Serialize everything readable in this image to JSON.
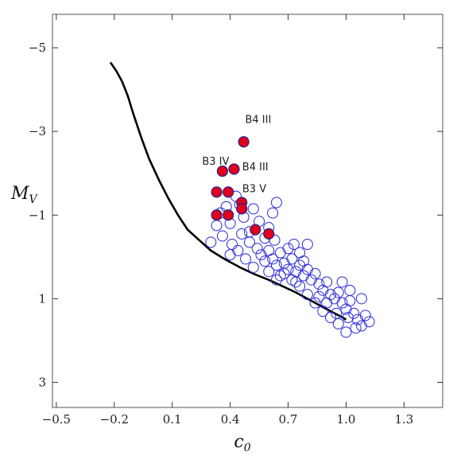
{
  "chart_data": {
    "type": "scatter",
    "title": "",
    "xlabel": "c",
    "xlabel_sub": "0",
    "ylabel": "M",
    "ylabel_sub": "V",
    "xlim": [
      -0.52,
      1.5
    ],
    "ylim": [
      3.6,
      -5.8
    ],
    "y_inverted": true,
    "grid": false,
    "legend": "none",
    "xticks": [
      -0.5,
      -0.2,
      0.1,
      0.4,
      0.7,
      1.0,
      1.3
    ],
    "xtick_labels": [
      "−0.5",
      "−0.2",
      "0.1",
      "0.4",
      "0.7",
      "1.0",
      "1.3"
    ],
    "yticks": [
      -5,
      -3,
      -1,
      1,
      3
    ],
    "ytick_labels": [
      "−5",
      "−3",
      "−1",
      "1",
      "3"
    ],
    "colors": {
      "open_markers": "#2a2ad8",
      "filled_markers_fill": "#e0001b",
      "filled_markers_edge": "#23238c",
      "curve": "#000000"
    },
    "series": [
      {
        "kind": "curve",
        "points": [
          [
            -0.22,
            -4.65
          ],
          [
            -0.19,
            -4.45
          ],
          [
            -0.16,
            -4.2
          ],
          [
            -0.13,
            -3.85
          ],
          [
            -0.1,
            -3.4
          ],
          [
            -0.06,
            -2.85
          ],
          [
            -0.02,
            -2.35
          ],
          [
            0.03,
            -1.85
          ],
          [
            0.08,
            -1.4
          ],
          [
            0.13,
            -1.0
          ],
          [
            0.18,
            -0.65
          ],
          [
            0.24,
            -0.4
          ],
          [
            0.3,
            -0.15
          ],
          [
            0.37,
            0.05
          ],
          [
            0.45,
            0.25
          ],
          [
            0.53,
            0.42
          ],
          [
            0.6,
            0.55
          ],
          [
            0.67,
            0.7
          ],
          [
            0.74,
            0.85
          ],
          [
            0.8,
            1.0
          ],
          [
            0.86,
            1.15
          ],
          [
            0.92,
            1.3
          ],
          [
            0.97,
            1.42
          ],
          [
            1.0,
            1.5
          ]
        ]
      },
      {
        "kind": "open",
        "points": [
          [
            0.3,
            -0.35
          ],
          [
            0.33,
            -0.75
          ],
          [
            0.35,
            -1.05
          ],
          [
            0.38,
            -1.2
          ],
          [
            0.4,
            -0.8
          ],
          [
            0.43,
            -1.45
          ],
          [
            0.45,
            -1.25
          ],
          [
            0.47,
            -0.95
          ],
          [
            0.5,
            -0.6
          ],
          [
            0.52,
            -1.15
          ],
          [
            0.55,
            -0.85
          ],
          [
            0.58,
            -0.45
          ],
          [
            0.6,
            -0.7
          ],
          [
            0.62,
            -1.05
          ],
          [
            0.64,
            -1.3
          ],
          [
            0.36,
            -0.5
          ],
          [
            0.41,
            -0.3
          ],
          [
            0.46,
            -0.55
          ],
          [
            0.5,
            -0.35
          ],
          [
            0.54,
            -0.2
          ],
          [
            0.56,
            -0.05
          ],
          [
            0.58,
            0.1
          ],
          [
            0.6,
            -0.15
          ],
          [
            0.62,
            0.05
          ],
          [
            0.64,
            0.2
          ],
          [
            0.66,
            -0.1
          ],
          [
            0.68,
            0.15
          ],
          [
            0.7,
            0.3
          ],
          [
            0.72,
            0.05
          ],
          [
            0.74,
            0.35
          ],
          [
            0.76,
            0.2
          ],
          [
            0.78,
            0.45
          ],
          [
            0.8,
            0.3
          ],
          [
            0.82,
            0.55
          ],
          [
            0.84,
            0.4
          ],
          [
            0.86,
            0.65
          ],
          [
            0.88,
            0.8
          ],
          [
            0.9,
            0.6
          ],
          [
            0.92,
            0.9
          ],
          [
            0.94,
            1.0
          ],
          [
            0.96,
            0.85
          ],
          [
            0.98,
            1.1
          ],
          [
            1.0,
            1.25
          ],
          [
            1.02,
            1.05
          ],
          [
            1.04,
            1.35
          ],
          [
            1.06,
            1.5
          ],
          [
            1.08,
            1.65
          ],
          [
            1.1,
            1.4
          ],
          [
            1.12,
            1.55
          ],
          [
            1.05,
            1.7
          ],
          [
            1.0,
            1.8
          ],
          [
            0.96,
            1.6
          ],
          [
            0.92,
            1.45
          ],
          [
            0.88,
            1.3
          ],
          [
            0.84,
            1.1
          ],
          [
            0.8,
            0.9
          ],
          [
            0.76,
            0.7
          ],
          [
            0.72,
            0.55
          ],
          [
            0.68,
            0.4
          ],
          [
            0.64,
            0.55
          ],
          [
            0.7,
            -0.2
          ],
          [
            0.73,
            -0.3
          ],
          [
            0.76,
            -0.1
          ],
          [
            0.6,
            0.35
          ],
          [
            0.52,
            0.25
          ],
          [
            0.48,
            0.05
          ],
          [
            0.44,
            -0.15
          ],
          [
            0.4,
            -0.05
          ],
          [
            0.98,
            0.6
          ],
          [
            1.02,
            0.8
          ],
          [
            1.08,
            1.0
          ],
          [
            0.9,
            1.1
          ],
          [
            0.95,
            1.35
          ],
          [
            1.01,
            1.45
          ],
          [
            0.86,
            0.95
          ],
          [
            0.78,
            0.1
          ],
          [
            0.8,
            -0.3
          ],
          [
            0.66,
            0.45
          ],
          [
            0.74,
            0.6
          ],
          [
            0.63,
            -0.4
          ]
        ]
      },
      {
        "kind": "filled",
        "points": [
          [
            0.47,
            -2.75
          ],
          [
            0.36,
            -2.05
          ],
          [
            0.42,
            -2.1
          ],
          [
            0.33,
            -1.55
          ],
          [
            0.39,
            -1.55
          ],
          [
            0.46,
            -1.3
          ],
          [
            0.46,
            -1.15
          ],
          [
            0.33,
            -1.0
          ],
          [
            0.39,
            -1.0
          ],
          [
            0.53,
            -0.65
          ],
          [
            0.6,
            -0.55
          ]
        ]
      }
    ],
    "annotations": [
      {
        "text": "B4 III",
        "x": 0.545,
        "y": -3.2
      },
      {
        "text": "B3 IV",
        "x": 0.325,
        "y": -2.2
      },
      {
        "text": "B4 III",
        "x": 0.53,
        "y": -2.07
      },
      {
        "text": "B3 V",
        "x": 0.525,
        "y": -1.55
      }
    ]
  }
}
